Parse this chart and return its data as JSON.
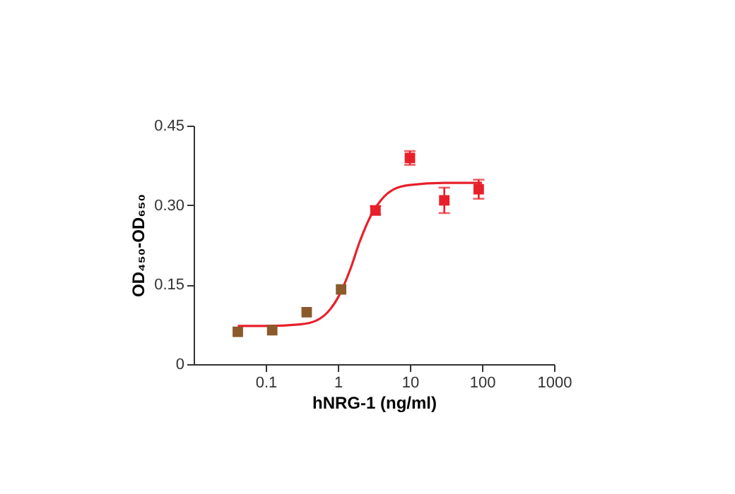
{
  "chart_data": {
    "type": "scatter",
    "xlabel": "hNRG-1 (ng/ml)",
    "ylabel": "OD₄₅₀-OD₆₅₀",
    "log": "x",
    "grid": false,
    "marker": "square",
    "xlim": [
      0.01,
      1000
    ],
    "xticks": [
      0.1,
      1,
      10,
      100,
      1000
    ],
    "ylim": [
      0,
      0.45
    ],
    "yticks": [
      0,
      0.15,
      {
        "value": 0.3,
        "label": "0.30"
      },
      0.45
    ],
    "series": [
      {
        "type": "line",
        "color": "#e8202a",
        "line_style": "solid",
        "marker": "none",
        "x": [
          0.041,
          0.1,
          0.3,
          0.5,
          0.8,
          1,
          1.5,
          2,
          3,
          4,
          6,
          10,
          30,
          100
        ],
        "values": [
          0.072,
          0.072,
          0.075,
          0.082,
          0.105,
          0.125,
          0.18,
          0.23,
          0.285,
          0.31,
          0.33,
          0.338,
          0.342,
          0.342
        ]
      },
      {
        "type": "scatter",
        "colors": [
          "#8b5a2b",
          "#8b5a2b",
          "#8b5a2b",
          "#8b5a2b",
          "#e8202a",
          "#e8202a",
          "#e8202a",
          "#e8202a"
        ],
        "x": [
          0.041,
          0.123,
          0.37,
          1.11,
          3.33,
          10,
          30,
          90
        ],
        "values": [
          0.061,
          0.064,
          0.098,
          0.141,
          0.29,
          0.389,
          0.309,
          0.33
        ],
        "errors": [
          null,
          null,
          null,
          null,
          0.008,
          0.013,
          0.024,
          0.018
        ]
      }
    ]
  }
}
